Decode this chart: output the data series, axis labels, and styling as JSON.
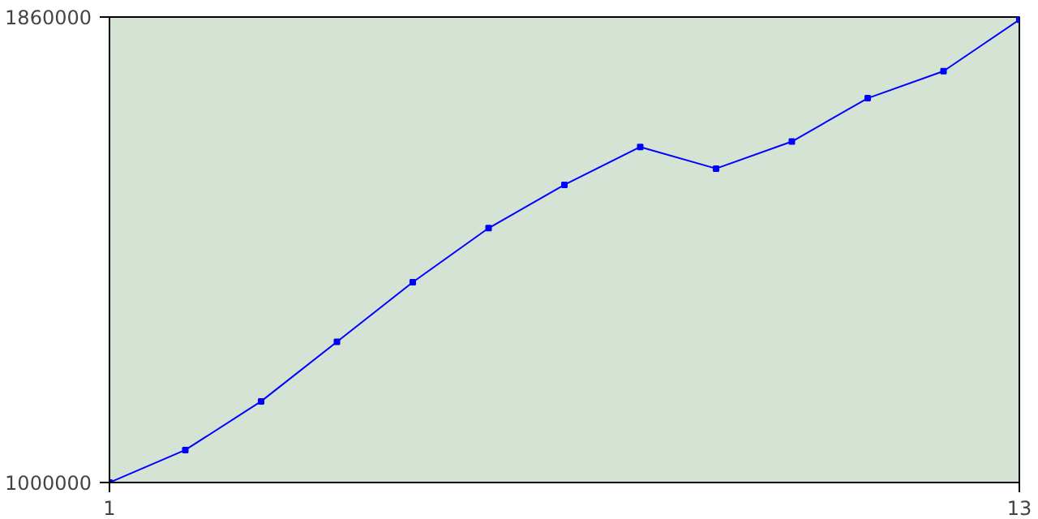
{
  "chart_data": {
    "type": "line",
    "x": [
      1,
      2,
      3,
      4,
      5,
      6,
      7,
      8,
      9,
      10,
      11,
      12,
      13
    ],
    "series": [
      {
        "color": "#0000ff",
        "values": [
          1000000,
          1060000,
          1150000,
          1260000,
          1370000,
          1470000,
          1550000,
          1620000,
          1580000,
          1630000,
          1710000,
          1760000,
          1855000
        ]
      }
    ],
    "xlim": [
      1,
      13
    ],
    "ylim": [
      1000000,
      1860000
    ],
    "xticks": [
      1,
      13
    ],
    "yticks": [
      {
        "value": 1000000,
        "label": "1000000"
      },
      {
        "value": 1860000,
        "label": "1860000"
      }
    ],
    "marker": "square",
    "line_style": "solid"
  }
}
